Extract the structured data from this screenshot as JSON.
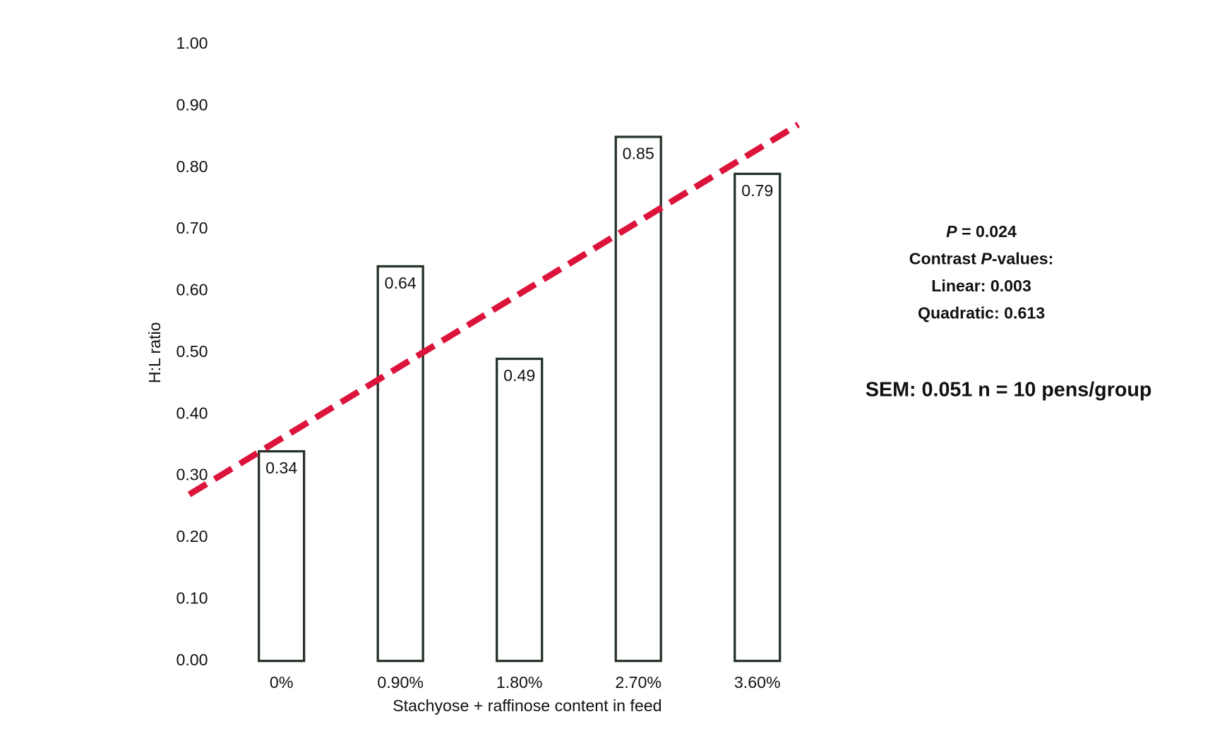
{
  "chart_data": {
    "type": "bar",
    "y_label": "H:L ratio",
    "x_label": "Stachyose + raffinose content in feed",
    "categories": [
      "0%",
      "0.90%",
      "1.80%",
      "2.70%",
      "3.60%"
    ],
    "values": [
      0.34,
      0.64,
      0.49,
      0.85,
      0.79
    ],
    "color": "#263328",
    "hollow": true,
    "ylim": [
      0,
      1
    ],
    "yticks": [
      {
        "value": 0,
        "label": "0.00"
      },
      {
        "value": 0.1,
        "label": "0.10"
      },
      {
        "value": 0.2,
        "label": "0.20"
      },
      {
        "value": 0.3,
        "label": "0.30"
      },
      {
        "value": 0.4,
        "label": "0.40"
      },
      {
        "value": 0.5,
        "label": "0.50"
      },
      {
        "value": 0.6,
        "label": "0.60"
      },
      {
        "value": 0.7,
        "label": "0.70"
      },
      {
        "value": 0.8,
        "label": "0.80"
      },
      {
        "value": 0.9,
        "label": "0.90"
      },
      {
        "value": 1,
        "label": "1.00"
      }
    ],
    "trendline": {
      "values": [
        0.27,
        0.87
      ],
      "color": "#dc143c",
      "dashed": true
    },
    "annotations": [
      [
        {
          "text": "P",
          "italic": true
        },
        {
          "text": " = 0.024"
        }
      ],
      [
        {
          "text": "Contrast "
        },
        {
          "text": "P",
          "italic": true
        },
        {
          "text": "-values:"
        }
      ],
      [
        {
          "text": "Linear: 0.003"
        }
      ],
      [
        {
          "text": "Quadratic: 0.613"
        }
      ]
    ],
    "note": "SEM: 0.051 n = 10 pens/group"
  }
}
